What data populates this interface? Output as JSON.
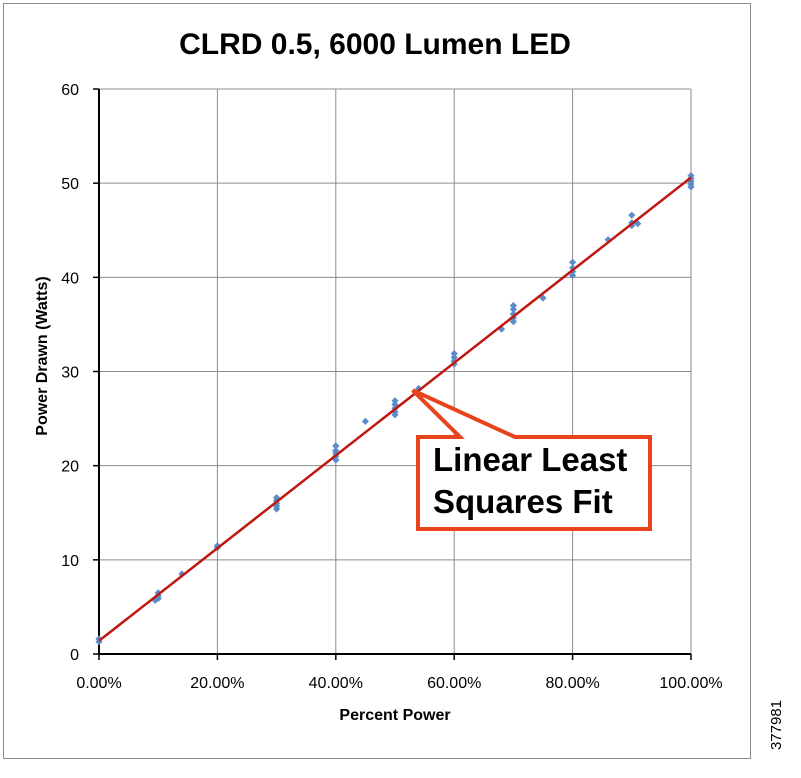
{
  "chart_data": {
    "type": "scatter",
    "title": "CLRD 0.5, 6000 Lumen LED",
    "xlabel": "Percent Power",
    "ylabel": "Power Drawn  (Watts)",
    "xlim": [
      0,
      100
    ],
    "ylim": [
      0,
      60
    ],
    "x_ticks": [
      0,
      20,
      40,
      60,
      80,
      100
    ],
    "x_tick_labels": [
      "0.00%",
      "20.00%",
      "40.00%",
      "60.00%",
      "80.00%",
      "100.00%"
    ],
    "y_ticks": [
      0,
      10,
      20,
      30,
      40,
      50,
      60
    ],
    "y_tick_labels": [
      "0",
      "10",
      "20",
      "30",
      "40",
      "50",
      "60"
    ],
    "grid": true,
    "legend": "none",
    "series": [
      {
        "points": [
          [
            0,
            1.3
          ],
          [
            0,
            1.6
          ],
          [
            9.5,
            5.7
          ],
          [
            10,
            5.9
          ],
          [
            10,
            6.2
          ],
          [
            10,
            6.5
          ],
          [
            9.8,
            6.0
          ],
          [
            14,
            8.5
          ],
          [
            20,
            11.3
          ],
          [
            20,
            11.5
          ],
          [
            30,
            15.4
          ],
          [
            30,
            15.7
          ],
          [
            30,
            16.0
          ],
          [
            30,
            16.3
          ],
          [
            30,
            16.6
          ],
          [
            40,
            20.6
          ],
          [
            40,
            21.0
          ],
          [
            40,
            21.3
          ],
          [
            40,
            21.6
          ],
          [
            40,
            22.1
          ],
          [
            45,
            24.7
          ],
          [
            50,
            25.4
          ],
          [
            50,
            25.7
          ],
          [
            50,
            26.1
          ],
          [
            50,
            26.5
          ],
          [
            50,
            26.9
          ],
          [
            54,
            28.2
          ],
          [
            60,
            30.8
          ],
          [
            60,
            31.1
          ],
          [
            60,
            31.5
          ],
          [
            60,
            31.9
          ],
          [
            68,
            34.5
          ],
          [
            70,
            35.3
          ],
          [
            70,
            35.7
          ],
          [
            70,
            36.1
          ],
          [
            70,
            36.6
          ],
          [
            70,
            37.0
          ],
          [
            75,
            37.8
          ],
          [
            80,
            40.2
          ],
          [
            80,
            40.6
          ],
          [
            80,
            41.0
          ],
          [
            80,
            41.6
          ],
          [
            86,
            44.0
          ],
          [
            90,
            45.5
          ],
          [
            90,
            45.8
          ],
          [
            90,
            46.6
          ],
          [
            91,
            45.7
          ],
          [
            100,
            49.6
          ],
          [
            100,
            49.9
          ],
          [
            100,
            50.2
          ],
          [
            100,
            50.5
          ],
          [
            100,
            50.8
          ]
        ],
        "color": "#5b8bc9"
      }
    ],
    "fit_line": {
      "type": "linear",
      "x": [
        0,
        100
      ],
      "y": [
        1.4,
        50.6
      ],
      "color": "#c0170f"
    },
    "annotation": {
      "lines": [
        "Linear Least",
        "Squares Fit"
      ],
      "target": [
        53,
        28
      ],
      "border_color": "#e8431b"
    }
  },
  "figure_id": "377981"
}
